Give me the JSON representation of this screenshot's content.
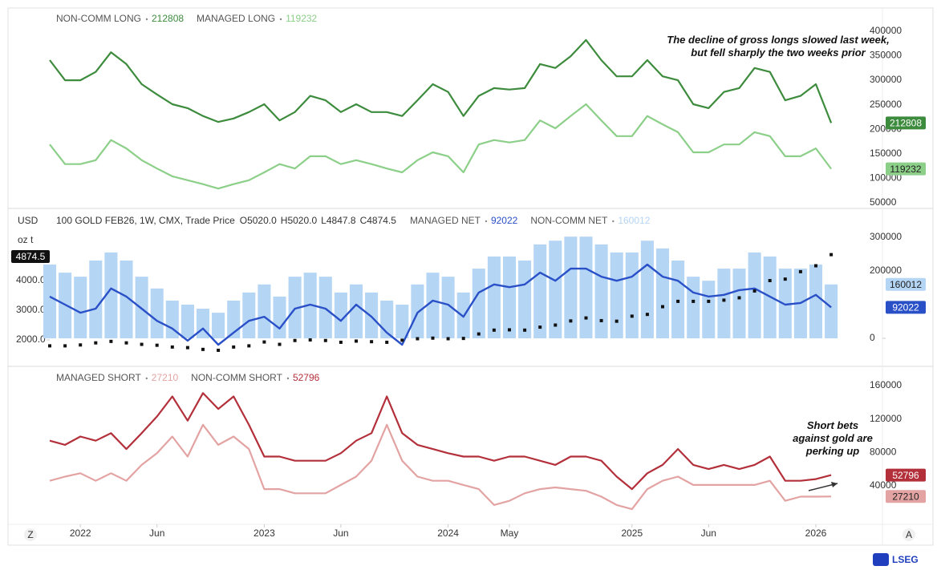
{
  "chart_data": [
    {
      "type": "line",
      "x": [
        "2021-11",
        "2021-12",
        "2022-01",
        "2022-02",
        "2022-03",
        "2022-04",
        "2022-05",
        "2022-06",
        "2022-07",
        "2022-08",
        "2022-09",
        "2022-10",
        "2022-11",
        "2022-12",
        "2023-01",
        "2023-02",
        "2023-03",
        "2023-04",
        "2023-05",
        "2023-06",
        "2023-07",
        "2023-08",
        "2023-09",
        "2023-10",
        "2023-11",
        "2023-12",
        "2024-01",
        "2024-02",
        "2024-03",
        "2024-04",
        "2024-05",
        "2024-06",
        "2024-07",
        "2024-08",
        "2024-09",
        "2024-10",
        "2024-11",
        "2024-12",
        "2025-01",
        "2025-02",
        "2025-03",
        "2025-04",
        "2025-05",
        "2025-06",
        "2025-07",
        "2025-08",
        "2025-09",
        "2025-10",
        "2025-11",
        "2025-12",
        "2026-01",
        "2026-02"
      ],
      "series": [
        {
          "name": "NON-COMM LONG",
          "color": "#3d8b3d",
          "values": [
            341000,
            300000,
            300000,
            317000,
            357000,
            333000,
            292000,
            271000,
            251000,
            243000,
            227000,
            215000,
            222000,
            235000,
            251000,
            218000,
            235000,
            268000,
            259000,
            235000,
            251000,
            235000,
            235000,
            227000,
            259000,
            292000,
            276000,
            227000,
            268000,
            284000,
            281000,
            284000,
            333000,
            325000,
            349000,
            382000,
            341000,
            308000,
            308000,
            341000,
            308000,
            300000,
            251000,
            243000,
            276000,
            284000,
            325000,
            317000,
            259000,
            268000,
            292000,
            212808
          ]
        },
        {
          "name": "MANAGED LONG",
          "color": "#8ccf88",
          "values": [
            169000,
            129000,
            129000,
            137000,
            178000,
            161000,
            137000,
            120000,
            104000,
            96000,
            88000,
            79000,
            88000,
            96000,
            112000,
            129000,
            120000,
            145000,
            145000,
            129000,
            137000,
            129000,
            120000,
            112000,
            137000,
            153000,
            145000,
            112000,
            169000,
            178000,
            173000,
            178000,
            218000,
            202000,
            227000,
            251000,
            218000,
            186000,
            186000,
            227000,
            210000,
            194000,
            153000,
            153000,
            169000,
            169000,
            194000,
            186000,
            145000,
            145000,
            161000,
            119232
          ]
        }
      ],
      "ylim": [
        38500,
        444000
      ],
      "yticks": [
        50000,
        100000,
        150000,
        200000,
        250000,
        300000,
        350000,
        400000
      ],
      "annotation": "The decline of gross longs slowed last week, but fell sharply the two weeks prior"
    },
    {
      "type": "combo",
      "x": [
        "2021-11",
        "2021-12",
        "2022-01",
        "2022-02",
        "2022-03",
        "2022-04",
        "2022-05",
        "2022-06",
        "2022-07",
        "2022-08",
        "2022-09",
        "2022-10",
        "2022-11",
        "2022-12",
        "2023-01",
        "2023-02",
        "2023-03",
        "2023-04",
        "2023-05",
        "2023-06",
        "2023-07",
        "2023-08",
        "2023-09",
        "2023-10",
        "2023-11",
        "2023-12",
        "2024-01",
        "2024-02",
        "2024-03",
        "2024-04",
        "2024-05",
        "2024-06",
        "2024-07",
        "2024-08",
        "2024-09",
        "2024-10",
        "2024-11",
        "2024-12",
        "2025-01",
        "2025-02",
        "2025-03",
        "2025-04",
        "2025-05",
        "2025-06",
        "2025-07",
        "2025-08",
        "2025-09",
        "2025-10",
        "2025-11",
        "2025-12",
        "2026-01",
        "2026-02"
      ],
      "ylabel": "USD",
      "yunit": "oz t",
      "ohlc_labels": [
        "O5020.0",
        "H5020.0",
        "L4847.8",
        "C4874.5"
      ],
      "series": [
        {
          "name": "100 GOLD FEB26, 1W, CMX, Trade Price",
          "color": "#111111",
          "mark": "candle",
          "values": [
            1800,
            1800,
            1830,
            1900,
            1950,
            1900,
            1850,
            1820,
            1760,
            1740,
            1680,
            1650,
            1760,
            1800,
            1930,
            1850,
            1980,
            2000,
            1980,
            1920,
            1960,
            1940,
            1920,
            1990,
            2040,
            2060,
            2040,
            2050,
            2200,
            2330,
            2340,
            2330,
            2430,
            2500,
            2640,
            2740,
            2650,
            2630,
            2800,
            2860,
            3120,
            3300,
            3300,
            3300,
            3340,
            3420,
            3650,
            4000,
            4050,
            4300,
            4500,
            4874.5
          ]
        },
        {
          "name": "MANAGED NET",
          "color": "#2a50c8",
          "mark": "line",
          "axis": "y2",
          "values": [
            124000,
            100000,
            76000,
            88000,
            148000,
            124000,
            88000,
            52000,
            29000,
            -7000,
            29000,
            -19000,
            17000,
            52000,
            64000,
            29000,
            88000,
            100000,
            88000,
            52000,
            100000,
            64000,
            17000,
            -19000,
            76000,
            112000,
            100000,
            64000,
            136000,
            160000,
            152000,
            160000,
            195000,
            171000,
            207000,
            207000,
            183000,
            171000,
            183000,
            219000,
            183000,
            171000,
            136000,
            124000,
            129000,
            143000,
            148000,
            124000,
            100000,
            105000,
            129000,
            92022
          ]
        },
        {
          "name": "NON-COMM NET",
          "color": "#b5d5f5",
          "mark": "bar",
          "axis": "y2",
          "values": [
            219000,
            195000,
            183000,
            231000,
            255000,
            231000,
            183000,
            148000,
            112000,
            100000,
            88000,
            76000,
            112000,
            136000,
            160000,
            124000,
            183000,
            195000,
            183000,
            136000,
            160000,
            136000,
            112000,
            100000,
            160000,
            195000,
            183000,
            136000,
            207000,
            243000,
            243000,
            231000,
            279000,
            290000,
            302000,
            302000,
            279000,
            255000,
            255000,
            290000,
            267000,
            231000,
            183000,
            171000,
            207000,
            207000,
            255000,
            243000,
            207000,
            207000,
            219000,
            160012
          ]
        }
      ],
      "ylim": [
        1162,
        6378
      ],
      "yticks": [
        {
          "value": 2000,
          "label": "2000.0"
        },
        {
          "value": 3000,
          "label": "3000.0"
        },
        {
          "value": 4000,
          "label": "4000.0"
        }
      ],
      "y2lim": [
        -78600,
        381000
      ],
      "y2ticks": [
        0,
        200000,
        300000
      ]
    },
    {
      "type": "line",
      "x": [
        "2021-11",
        "2021-12",
        "2022-01",
        "2022-02",
        "2022-03",
        "2022-04",
        "2022-05",
        "2022-06",
        "2022-07",
        "2022-08",
        "2022-09",
        "2022-10",
        "2022-11",
        "2022-12",
        "2023-01",
        "2023-02",
        "2023-03",
        "2023-04",
        "2023-05",
        "2023-06",
        "2023-07",
        "2023-08",
        "2023-09",
        "2023-10",
        "2023-11",
        "2023-12",
        "2024-01",
        "2024-02",
        "2024-03",
        "2024-04",
        "2024-05",
        "2024-06",
        "2024-07",
        "2024-08",
        "2024-09",
        "2024-10",
        "2024-11",
        "2024-12",
        "2025-01",
        "2025-02",
        "2025-03",
        "2025-04",
        "2025-05",
        "2025-06",
        "2025-07",
        "2025-08",
        "2025-09",
        "2025-10",
        "2025-11",
        "2025-12",
        "2026-01",
        "2026-02"
      ],
      "series": [
        {
          "name": "MANAGED SHORT",
          "color": "#e3a3a3",
          "values": [
            46000,
            51000,
            55000,
            46000,
            55000,
            46000,
            65000,
            79000,
            99000,
            75000,
            113000,
            89000,
            99000,
            84000,
            36000,
            36000,
            31000,
            31000,
            31000,
            41000,
            51000,
            70000,
            113000,
            70000,
            51000,
            46000,
            46000,
            41000,
            36000,
            17000,
            22000,
            31000,
            36000,
            38000,
            36000,
            34000,
            27000,
            17000,
            12000,
            36000,
            46000,
            51000,
            41000,
            41000,
            41000,
            41000,
            41000,
            46000,
            22000,
            27000,
            27000,
            27210
          ]
        },
        {
          "name": "NON-COMM SHORT",
          "color": "#b3303b",
          "values": [
            94000,
            89000,
            99000,
            94000,
            103000,
            84000,
            103000,
            123000,
            147000,
            118000,
            151000,
            132000,
            147000,
            113000,
            75000,
            75000,
            70000,
            70000,
            70000,
            79000,
            94000,
            103000,
            147000,
            103000,
            89000,
            84000,
            79000,
            75000,
            75000,
            70000,
            75000,
            75000,
            70000,
            65000,
            75000,
            75000,
            70000,
            51000,
            36000,
            55000,
            65000,
            84000,
            65000,
            60000,
            65000,
            60000,
            65000,
            75000,
            46000,
            46000,
            48000,
            52796
          ]
        }
      ],
      "ylim": [
        -4200,
        182000
      ],
      "yticks": [
        40000,
        80000,
        120000,
        160000
      ],
      "xticks": [
        {
          "value": "2022-01",
          "label": "2022"
        },
        {
          "value": "2022-06",
          "label": "Jun"
        },
        {
          "value": "2023-01",
          "label": "2023"
        },
        {
          "value": "2023-06",
          "label": "Jun"
        },
        {
          "value": "2024-01",
          "label": "2024"
        },
        {
          "value": "2024-05",
          "label": "May"
        },
        {
          "value": "2025-01",
          "label": "2025"
        },
        {
          "value": "2025-06",
          "label": "Jun"
        },
        {
          "value": "2026-01",
          "label": "2026"
        }
      ],
      "annotation": "Short bets against gold are perking up"
    }
  ],
  "ui": {
    "buttons": [
      "Z",
      "A"
    ],
    "logo": "LSEG"
  }
}
